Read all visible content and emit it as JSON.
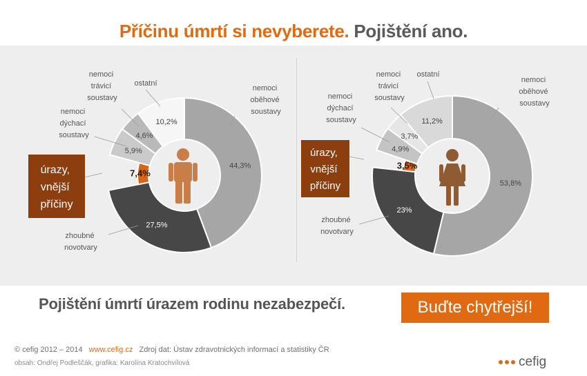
{
  "header": {
    "title_part1": "Příčinu úmrtí si nevyberete.",
    "title_part2": "Pojištění ano."
  },
  "chart_data": [
    {
      "type": "pie",
      "subject": "male",
      "slices": [
        {
          "label": "nemoci oběhové soustavy",
          "value": 44.3,
          "display": "44,3%",
          "color": "#a6a6a6"
        },
        {
          "label": "zhoubné novotvary",
          "value": 27.5,
          "display": "27,5%",
          "color": "#474747"
        },
        {
          "label": "úrazy, vnější příčiny",
          "value": 7.4,
          "display": "7,4%",
          "color": "#d96516"
        },
        {
          "label": "nemoci dýchací soustavy",
          "value": 5.9,
          "display": "5,9%",
          "color": "#cacaca"
        },
        {
          "label": "nemoci trávicí soustavy",
          "value": 4.6,
          "display": "4,6%",
          "color": "#b9b9b9"
        },
        {
          "label": "ostatní",
          "value": 10.2,
          "display": "10,2%",
          "color": "#f6f6f6"
        }
      ]
    },
    {
      "type": "pie",
      "subject": "female",
      "slices": [
        {
          "label": "nemoci oběhové soustavy",
          "value": 53.8,
          "display": "53,8%",
          "color": "#a6a6a6"
        },
        {
          "label": "zhoubné novotvary",
          "value": 23,
          "display": "23%",
          "color": "#474747"
        },
        {
          "label": "úrazy, vnější příčiny",
          "value": 3.5,
          "display": "3,5%",
          "color": "#d96516"
        },
        {
          "label": "nemoci dýchací soustavy",
          "value": 4.9,
          "display": "4,9%",
          "color": "#c4c4c4"
        },
        {
          "label": "nemoci trávicí soustavy",
          "value": 3.7,
          "display": "3,7%",
          "color": "#e6e6e6"
        },
        {
          "label": "ostatní",
          "value": 11.2,
          "display": "11,2%",
          "color": "#d9d9d9"
        }
      ]
    }
  ],
  "labels": {
    "circulatory": [
      "nemoci",
      "oběhové",
      "soustavy"
    ],
    "digestive": [
      "nemoci",
      "trávicí",
      "soustavy"
    ],
    "respiratory": [
      "nemoci",
      "dýchací",
      "soustavy"
    ],
    "other": "ostatní",
    "injuries": [
      "úrazy,",
      "vnější",
      "příčiny"
    ],
    "cancer": [
      "zhoubné",
      "novotvary"
    ]
  },
  "tagline": "Pojištění úmrtí úrazem rodinu nezabezpečí.",
  "cta_label": "Buďte chytřejší!",
  "footer": {
    "copyright": "© cefig 2012 – 2014",
    "website": "www.cefig.cz",
    "source": "Zdroj dat: Ústav zdravotnických informací a statistiky ČR",
    "credits": "obsah: Ondřej Podleščák, grafika: Karolína Kratochvílová"
  },
  "logo_text": "cefig",
  "colors": {
    "accent": "#e06a12",
    "injury_box": "#8c3e0e",
    "person_male": "#c97d47",
    "person_female": "#8e5b33"
  }
}
